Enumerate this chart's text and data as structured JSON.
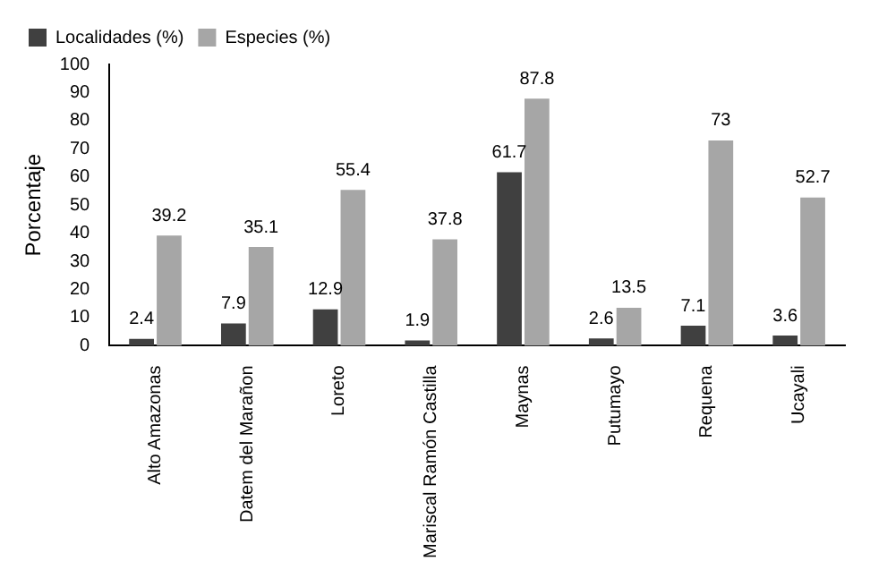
{
  "chart_data": {
    "type": "bar",
    "ylabel": "Porcentaje",
    "categories": [
      "Alto Amazonas",
      "Datem del Marañon",
      "Loreto",
      "Mariscal Ramón Castilla",
      "Maynas",
      "Putumayo",
      "Requena",
      "Ucayali"
    ],
    "series": [
      {
        "name": "Localidades (%)",
        "color": "#404040",
        "values": [
          2.4,
          7.9,
          12.9,
          1.9,
          61.7,
          2.6,
          7.1,
          3.6
        ]
      },
      {
        "name": "Especies (%)",
        "color": "#a6a6a6",
        "values": [
          39.2,
          35.1,
          55.4,
          37.8,
          87.8,
          13.5,
          73,
          52.7
        ]
      }
    ],
    "ylim": [
      0,
      100
    ],
    "yticks": [
      0,
      10,
      20,
      30,
      40,
      50,
      60,
      70,
      80,
      90,
      100
    ],
    "grid": false,
    "legend": "top",
    "data_labels": true
  }
}
